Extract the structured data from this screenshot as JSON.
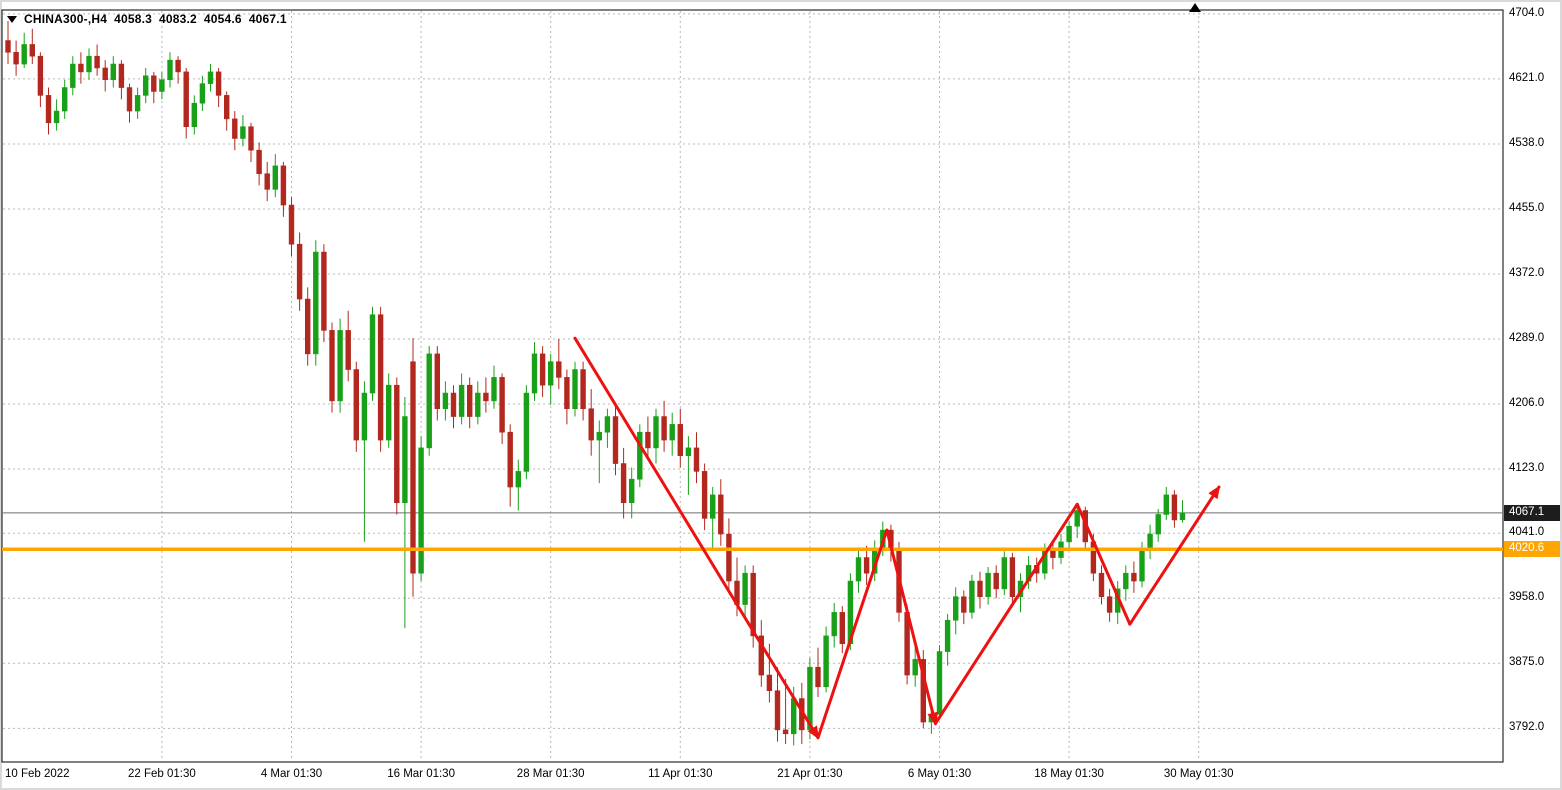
{
  "header": {
    "symbol": "CHINA300-,H4",
    "open": "4058.3",
    "high": "4083.2",
    "low": "4054.6",
    "close": "4067.1"
  },
  "chart_data": {
    "type": "candlestick",
    "title": "CHINA300-,H4",
    "symbol": "CHINA300-",
    "timeframe": "H4",
    "grid": true,
    "legend": false,
    "ylim": [
      3749,
      4709
    ],
    "y_ticks": [
      4704.0,
      4621.0,
      4538.0,
      4455.0,
      4372.0,
      4289.0,
      4206.0,
      4123.0,
      4041.0,
      3958.0,
      3875.0,
      3792.0
    ],
    "x_labels": [
      {
        "text": "10 Feb 2022",
        "bar": 0
      },
      {
        "text": "22 Feb 01:30",
        "bar": 19
      },
      {
        "text": "4 Mar 01:30",
        "bar": 35
      },
      {
        "text": "16 Mar 01:30",
        "bar": 51
      },
      {
        "text": "28 Mar 01:30",
        "bar": 67
      },
      {
        "text": "11 Apr 01:30",
        "bar": 83
      },
      {
        "text": "21 Apr 01:30",
        "bar": 99
      },
      {
        "text": "6 May 01:30",
        "bar": 115
      },
      {
        "text": "18 May 01:30",
        "bar": 131
      },
      {
        "text": "30 May 01:30",
        "bar": 147
      }
    ],
    "price_line": {
      "value": 4067.1,
      "label": "4067.1"
    },
    "horizontal_line": {
      "value": 4020.6,
      "label": "4020.6",
      "color": "#ffa500"
    },
    "colors": {
      "up": "#18a118",
      "down": "#b3281e",
      "grid": "#b8b8b8",
      "border": "#000000",
      "price_line": "#6e6e6e",
      "price_tag_bg": "#1d1d1d",
      "price_tag_text": "#ffffff",
      "hline_tag_text": "#ffffff",
      "annotation": "#ee1111"
    },
    "annotation_arrows": {
      "color": "#ee1111",
      "points": [
        [
          70,
          4290
        ],
        [
          100,
          3780
        ],
        [
          108.5,
          4045
        ],
        [
          114.5,
          3798
        ],
        [
          132,
          4078
        ],
        [
          138.5,
          3925
        ],
        [
          149.5,
          4100
        ]
      ],
      "arrowhead_at": [
        1,
        3,
        6
      ]
    },
    "candles": [
      [
        4670,
        4695,
        4640,
        4655
      ],
      [
        4655,
        4670,
        4625,
        4640
      ],
      [
        4640,
        4680,
        4635,
        4665
      ],
      [
        4665,
        4685,
        4640,
        4650
      ],
      [
        4650,
        4655,
        4585,
        4600
      ],
      [
        4600,
        4610,
        4550,
        4565
      ],
      [
        4565,
        4595,
        4555,
        4580
      ],
      [
        4580,
        4620,
        4570,
        4610
      ],
      [
        4610,
        4650,
        4600,
        4640
      ],
      [
        4640,
        4655,
        4615,
        4630
      ],
      [
        4630,
        4660,
        4620,
        4650
      ],
      [
        4650,
        4665,
        4625,
        4635
      ],
      [
        4635,
        4645,
        4605,
        4620
      ],
      [
        4620,
        4650,
        4610,
        4640
      ],
      [
        4640,
        4645,
        4595,
        4610
      ],
      [
        4610,
        4615,
        4565,
        4580
      ],
      [
        4580,
        4610,
        4570,
        4600
      ],
      [
        4600,
        4635,
        4590,
        4625
      ],
      [
        4625,
        4630,
        4590,
        4605
      ],
      [
        4605,
        4630,
        4595,
        4620
      ],
      [
        4620,
        4655,
        4610,
        4645
      ],
      [
        4645,
        4650,
        4615,
        4630
      ],
      [
        4630,
        4635,
        4545,
        4560
      ],
      [
        4560,
        4600,
        4550,
        4590
      ],
      [
        4590,
        4625,
        4580,
        4615
      ],
      [
        4615,
        4640,
        4605,
        4630
      ],
      [
        4630,
        4635,
        4585,
        4600
      ],
      [
        4600,
        4605,
        4555,
        4570
      ],
      [
        4570,
        4580,
        4530,
        4545
      ],
      [
        4545,
        4575,
        4535,
        4560
      ],
      [
        4560,
        4565,
        4515,
        4530
      ],
      [
        4530,
        4540,
        4485,
        4500
      ],
      [
        4500,
        4515,
        4465,
        4480
      ],
      [
        4480,
        4525,
        4470,
        4510
      ],
      [
        4510,
        4515,
        4445,
        4460
      ],
      [
        4460,
        4470,
        4395,
        4410
      ],
      [
        4410,
        4425,
        4325,
        4340
      ],
      [
        4340,
        4355,
        4255,
        4270
      ],
      [
        4270,
        4415,
        4255,
        4400
      ],
      [
        4400,
        4410,
        4285,
        4300
      ],
      [
        4300,
        4310,
        4195,
        4210
      ],
      [
        4210,
        4315,
        4195,
        4300
      ],
      [
        4300,
        4325,
        4235,
        4250
      ],
      [
        4250,
        4260,
        4145,
        4160
      ],
      [
        4160,
        4235,
        4030,
        4220
      ],
      [
        4220,
        4330,
        4210,
        4320
      ],
      [
        4320,
        4330,
        4145,
        4160
      ],
      [
        4160,
        4245,
        4150,
        4230
      ],
      [
        4230,
        4240,
        4065,
        4080
      ],
      [
        4080,
        4215,
        3920,
        4190
      ],
      [
        4260,
        4290,
        3960,
        3990
      ],
      [
        3990,
        4165,
        3980,
        4150
      ],
      [
        4150,
        4280,
        4140,
        4270
      ],
      [
        4270,
        4280,
        4185,
        4200
      ],
      [
        4200,
        4235,
        4185,
        4220
      ],
      [
        4220,
        4230,
        4175,
        4190
      ],
      [
        4190,
        4245,
        4180,
        4230
      ],
      [
        4230,
        4240,
        4175,
        4190
      ],
      [
        4190,
        4235,
        4180,
        4220
      ],
      [
        4220,
        4240,
        4195,
        4210
      ],
      [
        4210,
        4255,
        4200,
        4240
      ],
      [
        4240,
        4245,
        4155,
        4170
      ],
      [
        4170,
        4180,
        4075,
        4100
      ],
      [
        4100,
        4135,
        4070,
        4120
      ],
      [
        4120,
        4230,
        4110,
        4220
      ],
      [
        4220,
        4285,
        4210,
        4270
      ],
      [
        4270,
        4280,
        4215,
        4230
      ],
      [
        4230,
        4270,
        4205,
        4260
      ],
      [
        4260,
        4289,
        4225,
        4240
      ],
      [
        4240,
        4250,
        4180,
        4200
      ],
      [
        4200,
        4260,
        4190,
        4250
      ],
      [
        4250,
        4260,
        4185,
        4200
      ],
      [
        4200,
        4225,
        4140,
        4160
      ],
      [
        4160,
        4185,
        4105,
        4170
      ],
      [
        4170,
        4200,
        4150,
        4190
      ],
      [
        4190,
        4205,
        4115,
        4130
      ],
      [
        4130,
        4150,
        4060,
        4080
      ],
      [
        4080,
        4125,
        4060,
        4110
      ],
      [
        4110,
        4180,
        4100,
        4170
      ],
      [
        4170,
        4190,
        4135,
        4150
      ],
      [
        4150,
        4200,
        4130,
        4190
      ],
      [
        4190,
        4210,
        4145,
        4160
      ],
      [
        4160,
        4195,
        4140,
        4180
      ],
      [
        4180,
        4200,
        4125,
        4140
      ],
      [
        4140,
        4165,
        4090,
        4150
      ],
      [
        4150,
        4170,
        4105,
        4120
      ],
      [
        4120,
        4130,
        4045,
        4060
      ],
      [
        4060,
        4100,
        4020,
        4090
      ],
      [
        4090,
        4110,
        4025,
        4040
      ],
      [
        4040,
        4060,
        3965,
        3980
      ],
      [
        3980,
        4010,
        3935,
        3950
      ],
      [
        3950,
        4000,
        3930,
        3990
      ],
      [
        3990,
        4000,
        3895,
        3910
      ],
      [
        3910,
        3930,
        3845,
        3860
      ],
      [
        3860,
        3900,
        3825,
        3840
      ],
      [
        3840,
        3870,
        3775,
        3790
      ],
      [
        3790,
        3855,
        3772,
        3785
      ],
      [
        3785,
        3845,
        3770,
        3830
      ],
      [
        3830,
        3850,
        3772,
        3790
      ],
      [
        3790,
        3882,
        3778,
        3870
      ],
      [
        3870,
        3895,
        3832,
        3845
      ],
      [
        3845,
        3922,
        3838,
        3910
      ],
      [
        3910,
        3952,
        3895,
        3940
      ],
      [
        3940,
        3948,
        3888,
        3900
      ],
      [
        3900,
        3990,
        3892,
        3980
      ],
      [
        3980,
        4022,
        3965,
        4010
      ],
      [
        4010,
        4025,
        3975,
        3990
      ],
      [
        3990,
        4032,
        3980,
        4020
      ],
      [
        4020,
        4056,
        4012,
        4045
      ],
      [
        4045,
        4052,
        4005,
        4020
      ],
      [
        4020,
        4030,
        3928,
        3940
      ],
      [
        3940,
        3950,
        3848,
        3860
      ],
      [
        3860,
        3902,
        3845,
        3880
      ],
      [
        3880,
        3892,
        3792,
        3800
      ],
      [
        3800,
        3822,
        3785,
        3810
      ],
      [
        3810,
        3898,
        3805,
        3890
      ],
      [
        3890,
        3938,
        3872,
        3930
      ],
      [
        3930,
        3972,
        3912,
        3960
      ],
      [
        3960,
        3968,
        3925,
        3940
      ],
      [
        3940,
        3988,
        3932,
        3980
      ],
      [
        3980,
        3992,
        3945,
        3960
      ],
      [
        3960,
        3998,
        3950,
        3990
      ],
      [
        3990,
        4000,
        3958,
        3970
      ],
      [
        3970,
        4018,
        3962,
        4010
      ],
      [
        4010,
        4016,
        3948,
        3960
      ],
      [
        3960,
        3990,
        3940,
        3980
      ],
      [
        3980,
        4012,
        3970,
        4000
      ],
      [
        4000,
        4010,
        3978,
        3990
      ],
      [
        3990,
        4028,
        3982,
        4020
      ],
      [
        4020,
        4030,
        3995,
        4010
      ],
      [
        4010,
        4040,
        4002,
        4030
      ],
      [
        4030,
        4056,
        4020,
        4050
      ],
      [
        4050,
        4078,
        4035,
        4070
      ],
      [
        4070,
        4075,
        4020,
        4030
      ],
      [
        4030,
        4040,
        3980,
        3990
      ],
      [
        3990,
        4000,
        3950,
        3960
      ],
      [
        3960,
        3970,
        3928,
        3940
      ],
      [
        3940,
        3980,
        3925,
        3970
      ],
      [
        3970,
        4000,
        3955,
        3990
      ],
      [
        3990,
        4005,
        3965,
        3980
      ],
      [
        3980,
        4030,
        3972,
        4020
      ],
      [
        4020,
        4052,
        4008,
        4040
      ],
      [
        4040,
        4072,
        4030,
        4065
      ],
      [
        4065,
        4100,
        4058,
        4090
      ],
      [
        4090,
        4096,
        4048,
        4058
      ],
      [
        4058.3,
        4083.2,
        4054.6,
        4067.1
      ]
    ]
  }
}
